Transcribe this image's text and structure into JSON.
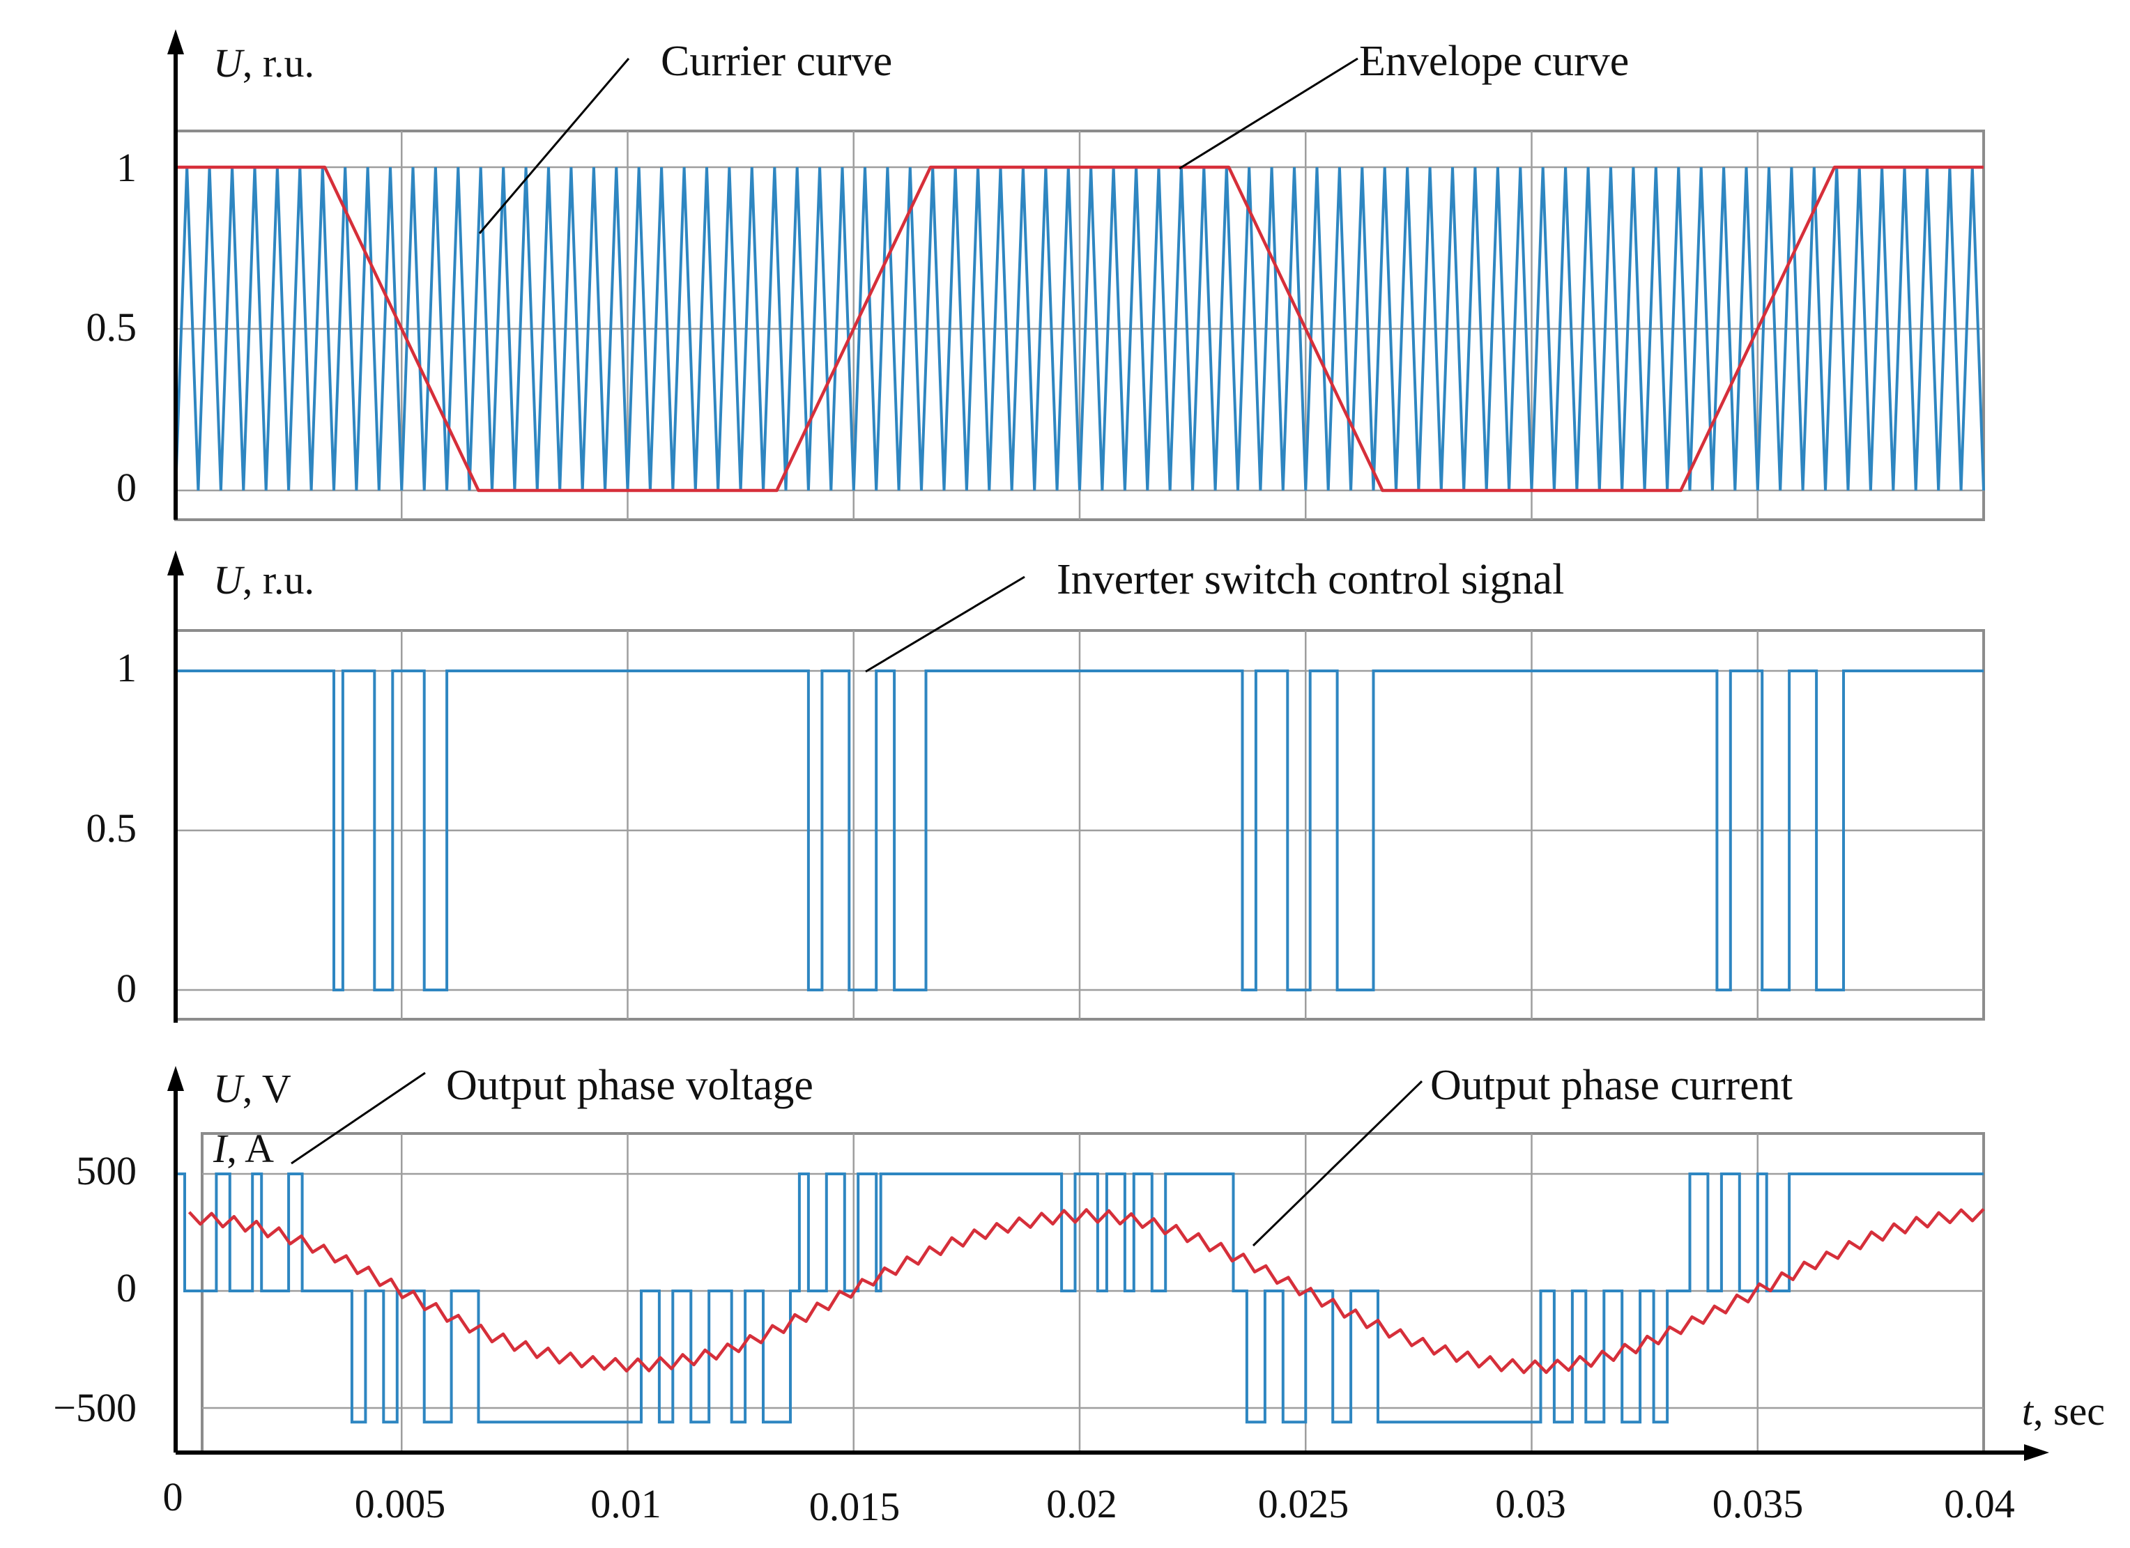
{
  "colors": {
    "carrier": "#2e86c1",
    "envelope": "#d62f3a",
    "signal": "#2e86c1",
    "voltage": "#2e86c1",
    "current": "#d62f3a"
  },
  "x_axis": {
    "label_var": "t",
    "label_unit": ", sec",
    "ticks": [
      "0",
      "0.005",
      "0.01",
      "0.015",
      "0.02",
      "0.025",
      "0.03",
      "0.035",
      "0.04"
    ]
  },
  "chart_data": [
    {
      "type": "line",
      "panel": "top",
      "ylabel_var": "U",
      "ylabel_unit": ", r.u.",
      "yticks": [
        "0",
        "0.5",
        "1"
      ],
      "ylim": [
        -0.1,
        1.12
      ],
      "xlim": [
        0,
        0.04
      ],
      "grid": true,
      "annotations": [
        "Currier curve",
        "Envelope curve"
      ],
      "series": [
        {
          "name": "Currier curve",
          "kind": "triangle",
          "frequency_hz": 2000,
          "min": 0,
          "max": 1
        },
        {
          "name": "Envelope curve",
          "x": [
            0,
            0.0033,
            0.0067,
            0.0133,
            0.0167,
            0.0233,
            0.0267,
            0.0333,
            0.0367,
            0.04
          ],
          "y": [
            1,
            1,
            0,
            0,
            1,
            1,
            0,
            0,
            1,
            1
          ]
        }
      ]
    },
    {
      "type": "line",
      "panel": "middle",
      "ylabel_var": "U",
      "ylabel_unit": ", r.u.",
      "yticks": [
        "0",
        "0.5",
        "1"
      ],
      "ylim": [
        -0.1,
        1.12
      ],
      "xlim": [
        0,
        0.04
      ],
      "grid": true,
      "annotations": [
        "Inverter switch control signal"
      ],
      "series": [
        {
          "name": "Inverter switch control signal",
          "kind": "step",
          "x": [
            0,
            0.0035,
            0.0037,
            0.0044,
            0.0048,
            0.0055,
            0.006,
            0.014,
            0.0143,
            0.0149,
            0.0155,
            0.0159,
            0.0166,
            0.0236,
            0.0239,
            0.0246,
            0.0251,
            0.0257,
            0.0265,
            0.0341,
            0.0344,
            0.0351,
            0.0357,
            0.0363,
            0.0369
          ],
          "y": [
            1,
            0,
            1,
            0,
            1,
            0,
            1,
            0,
            1,
            0,
            1,
            0,
            1,
            0,
            1,
            0,
            1,
            0,
            1,
            0,
            1,
            0,
            1,
            0,
            1
          ]
        }
      ]
    },
    {
      "type": "line",
      "panel": "bottom",
      "ylabel_var": "U",
      "ylabel_unit": ", V",
      "ylabel2_var": "I",
      "ylabel2_unit": ", A",
      "yticks": [
        "−500",
        "0",
        "500"
      ],
      "ylim": [
        -620,
        620
      ],
      "xlim": [
        0,
        0.04
      ],
      "grid": true,
      "annotations": [
        "Output phase voltage",
        "Output phase current"
      ],
      "series": [
        {
          "name": "Output phase voltage",
          "kind": "step",
          "x": [
            0,
            0.0002,
            0.0009,
            0.0012,
            0.0017,
            0.0019,
            0.0025,
            0.0028,
            0.0036,
            0.0039,
            0.0042,
            0.0046,
            0.0049,
            0.0055,
            0.0061,
            0.0067,
            0.0103,
            0.0107,
            0.011,
            0.0114,
            0.0118,
            0.0123,
            0.0126,
            0.013,
            0.0136,
            0.0138,
            0.014,
            0.0144,
            0.0148,
            0.0151,
            0.0155,
            0.0156,
            0.0161,
            0.0196,
            0.0199,
            0.0204,
            0.0206,
            0.021,
            0.0212,
            0.0216,
            0.0219,
            0.0234,
            0.0237,
            0.0241,
            0.0245,
            0.025,
            0.0256,
            0.026,
            0.0266,
            0.0302,
            0.0305,
            0.0309,
            0.0312,
            0.0316,
            0.032,
            0.0324,
            0.0327,
            0.033,
            0.0335,
            0.0339,
            0.0342,
            0.0346,
            0.035,
            0.0352,
            0.0357,
            0.0362,
            0.04
          ],
          "y": [
            500,
            0,
            500,
            0,
            500,
            0,
            500,
            0,
            0,
            -560,
            0,
            -560,
            0,
            -560,
            0,
            -560,
            0,
            -560,
            0,
            -560,
            0,
            -560,
            0,
            -560,
            0,
            500,
            0,
            500,
            0,
            500,
            0,
            500,
            500,
            0,
            500,
            0,
            500,
            0,
            500,
            0,
            500,
            0,
            -560,
            0,
            -560,
            0,
            -560,
            0,
            -560,
            0,
            -560,
            0,
            -560,
            0,
            -560,
            0,
            -560,
            0,
            500,
            0,
            500,
            0,
            500,
            0,
            500,
            500,
            500
          ]
        },
        {
          "name": "Output phase current",
          "kind": "sine",
          "amplitude": 320,
          "frequency_hz": 50,
          "phase_deg": 90,
          "ripple": 30
        }
      ]
    }
  ]
}
